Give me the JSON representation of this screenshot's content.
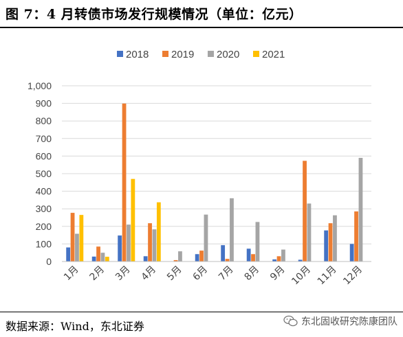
{
  "header": {
    "title": "图 7：4 月转债市场发行规模情况（单位：亿元）"
  },
  "footer": {
    "source": "数据来源：Wind，东北证券",
    "watermark": "东北固收研究陈康团队"
  },
  "chart_data": {
    "type": "bar",
    "title": "",
    "xlabel": "",
    "ylabel": "",
    "ylim": [
      0,
      1000
    ],
    "yticks": [
      "0",
      "100",
      "200",
      "300",
      "400",
      "500",
      "600",
      "700",
      "800",
      "900",
      "1,000"
    ],
    "grid": true,
    "legend_position": "top-center",
    "categories": [
      "1月",
      "2月",
      "3月",
      "4月",
      "5月",
      "6月",
      "7月",
      "8月",
      "9月",
      "10月",
      "11月",
      "12月"
    ],
    "series": [
      {
        "name": "2018",
        "color": "#4472c4",
        "values": [
          80,
          28,
          148,
          30,
          0,
          42,
          93,
          73,
          12,
          10,
          177,
          100
        ]
      },
      {
        "name": "2019",
        "color": "#ed7d31",
        "values": [
          277,
          85,
          899,
          218,
          8,
          62,
          15,
          42,
          30,
          573,
          218,
          285
        ]
      },
      {
        "name": "2020",
        "color": "#a5a5a5",
        "values": [
          158,
          50,
          210,
          183,
          58,
          267,
          360,
          225,
          68,
          330,
          263,
          590
        ]
      },
      {
        "name": "2021",
        "color": "#ffc000",
        "values": [
          265,
          27,
          470,
          337,
          null,
          null,
          null,
          null,
          null,
          null,
          null,
          null
        ]
      }
    ]
  }
}
